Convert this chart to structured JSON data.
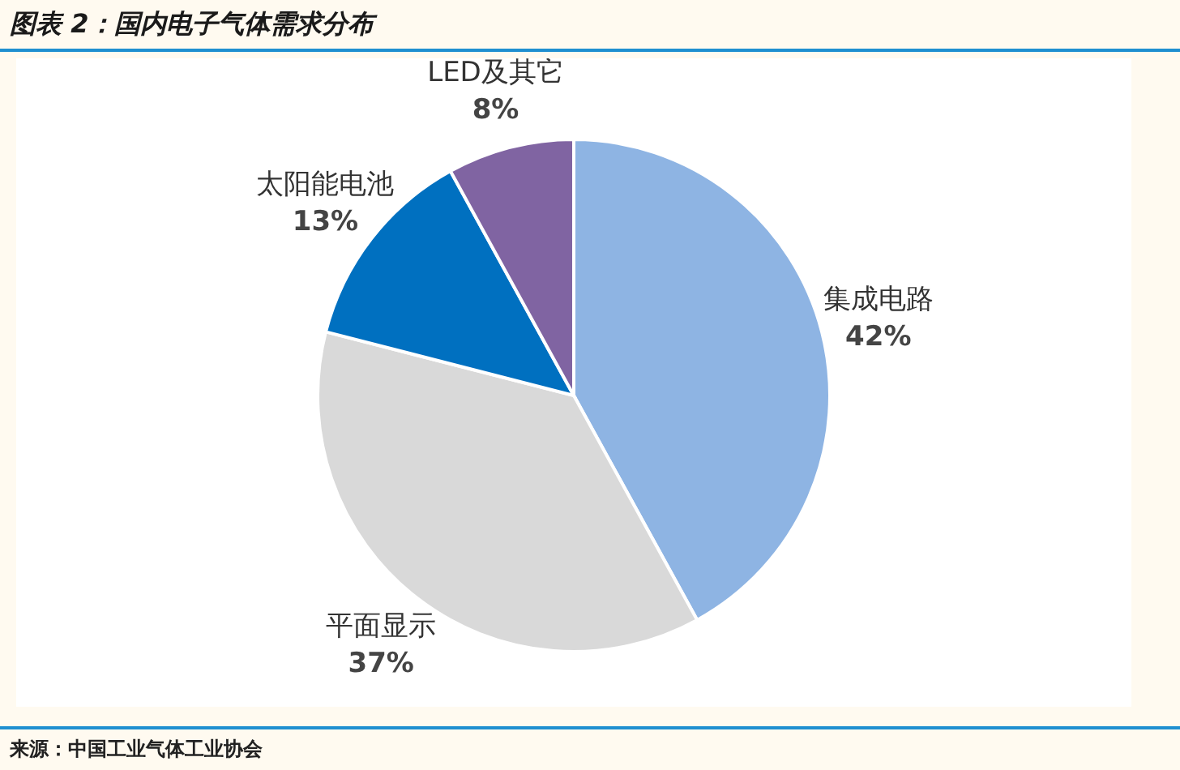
{
  "chart_data": {
    "type": "pie",
    "title": "图表 2：国内电子气体需求分布",
    "categories": [
      "集成电路",
      "平面显示",
      "太阳能电池",
      "LED及其它"
    ],
    "values": [
      42,
      37,
      13,
      8
    ],
    "value_labels": [
      "42%",
      "37%",
      "13%",
      "8%"
    ],
    "colors": [
      "#8eb4e3",
      "#d9d9d9",
      "#0070c0",
      "#8064a2"
    ],
    "annotations": [
      "来源：中国工业气体工业协会"
    ]
  }
}
